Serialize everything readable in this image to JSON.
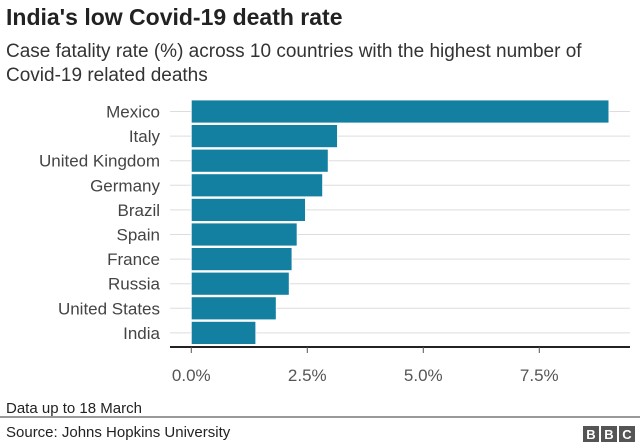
{
  "chart_data": {
    "type": "bar",
    "orientation": "horizontal",
    "title": "India's low Covid-19 death rate",
    "subtitle": "Case fatality rate (%) across 10 countries with the highest number of Covid-19 related deaths",
    "categories": [
      "Mexico",
      "Italy",
      "United Kingdom",
      "Germany",
      "Brazil",
      "Spain",
      "France",
      "Russia",
      "United States",
      "India"
    ],
    "values": [
      9.0,
      3.15,
      2.95,
      2.83,
      2.46,
      2.28,
      2.17,
      2.11,
      1.83,
      1.39
    ],
    "xlim": [
      0,
      9.5
    ],
    "xticks": [
      0,
      2.5,
      5,
      7.5
    ],
    "xtick_labels": [
      "0.0%",
      "2.5%",
      "5.0%",
      "7.5%"
    ],
    "xlabel": "",
    "ylabel": "",
    "grid": true,
    "bar_color": "#1380A1"
  },
  "footer": {
    "note": "Data up to 18 March",
    "source": "Source: Johns Hopkins University",
    "logo": [
      "B",
      "B",
      "C"
    ]
  }
}
